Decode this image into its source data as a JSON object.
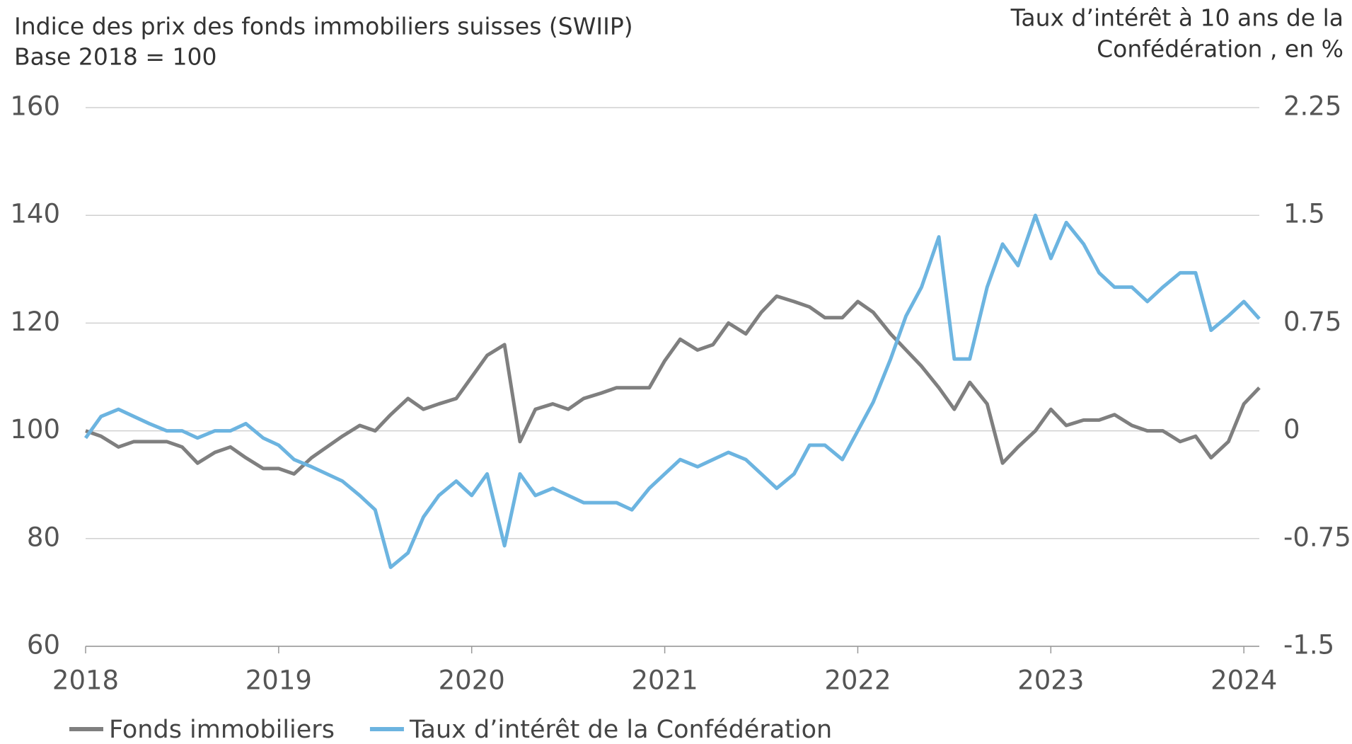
{
  "chart_data": {
    "type": "line",
    "title": "Indice des prix des fonds immobiliers suisses (SWIIP)",
    "subtitle": "Base 2018 = 100",
    "y2_label": [
      "Taux d’intérêt à 10 ans de la",
      "Confédération , en %"
    ],
    "x": [
      2018.0,
      2018.08,
      2018.17,
      2018.25,
      2018.33,
      2018.42,
      2018.5,
      2018.58,
      2018.67,
      2018.75,
      2018.83,
      2018.92,
      2019.0,
      2019.08,
      2019.17,
      2019.25,
      2019.33,
      2019.42,
      2019.5,
      2019.58,
      2019.67,
      2019.75,
      2019.83,
      2019.92,
      2020.0,
      2020.08,
      2020.17,
      2020.25,
      2020.33,
      2020.42,
      2020.5,
      2020.58,
      2020.67,
      2020.75,
      2020.83,
      2020.92,
      2021.0,
      2021.08,
      2021.17,
      2021.25,
      2021.33,
      2021.42,
      2021.5,
      2021.58,
      2021.67,
      2021.75,
      2021.83,
      2021.92,
      2022.0,
      2022.08,
      2022.17,
      2022.25,
      2022.33,
      2022.42,
      2022.5,
      2022.58,
      2022.67,
      2022.75,
      2022.83,
      2022.92,
      2023.0,
      2023.08,
      2023.17,
      2023.25,
      2023.33,
      2023.42,
      2023.5,
      2023.58,
      2023.67,
      2023.75,
      2023.83,
      2023.92,
      2024.0,
      2024.08
    ],
    "series": [
      {
        "name": "Fonds immobiliers",
        "color": "#7f7f7f",
        "axis": "y",
        "values": [
          100,
          99,
          97,
          98,
          98,
          98,
          97,
          94,
          96,
          97,
          95,
          93,
          93,
          92,
          95,
          97,
          99,
          101,
          100,
          103,
          106,
          104,
          105,
          106,
          110,
          114,
          116,
          98,
          104,
          105,
          104,
          106,
          107,
          108,
          108,
          108,
          113,
          117,
          115,
          116,
          120,
          118,
          122,
          125,
          124,
          123,
          121,
          121,
          124,
          122,
          118,
          115,
          112,
          108,
          104,
          109,
          105,
          94,
          97,
          100,
          104,
          101,
          102,
          102,
          103,
          101,
          100,
          100,
          98,
          99,
          95,
          98,
          105,
          108
        ]
      },
      {
        "name": "Taux d’intérêt de la Confédération",
        "color": "#6cb4e0",
        "axis": "y2",
        "values": [
          -0.05,
          0.1,
          0.15,
          0.1,
          0.05,
          0.0,
          0.0,
          -0.05,
          0.0,
          0.0,
          0.05,
          -0.05,
          -0.1,
          -0.2,
          -0.25,
          -0.3,
          -0.35,
          -0.45,
          -0.55,
          -0.95,
          -0.85,
          -0.6,
          -0.45,
          -0.35,
          -0.45,
          -0.3,
          -0.8,
          -0.3,
          -0.45,
          -0.4,
          -0.45,
          -0.5,
          -0.5,
          -0.5,
          -0.55,
          -0.4,
          -0.3,
          -0.2,
          -0.25,
          -0.2,
          -0.15,
          -0.2,
          -0.3,
          -0.4,
          -0.3,
          -0.1,
          -0.1,
          -0.2,
          0.0,
          0.2,
          0.5,
          0.8,
          1.0,
          1.35,
          0.5,
          0.5,
          1.0,
          1.3,
          1.15,
          1.5,
          1.2,
          1.45,
          1.3,
          1.1,
          1.0,
          1.0,
          0.9,
          1.0,
          1.1,
          1.1,
          0.7,
          0.8,
          0.9,
          0.78
        ]
      }
    ],
    "xlim": [
      2018,
      2024.08
    ],
    "xticks": [
      2018,
      2019,
      2020,
      2021,
      2022,
      2023,
      2024
    ],
    "ylim": [
      60,
      160
    ],
    "yticks": [
      60,
      80,
      100,
      120,
      140,
      160
    ],
    "y2lim": [
      -1.5,
      2.25
    ],
    "y2ticks": [
      -1.5,
      -0.75,
      0,
      0.75,
      1.5,
      2.25
    ],
    "grid": true,
    "legend": "bottom"
  }
}
